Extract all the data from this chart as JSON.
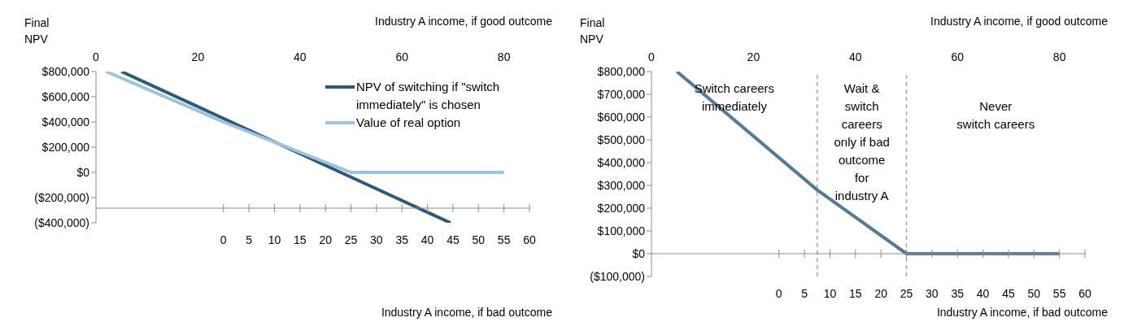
{
  "chart_data": [
    {
      "type": "line",
      "ylabel": "Final\nNPV",
      "xlabel": "Industry A income, if bad outcome",
      "x2label": "Industry A income, if good outcome",
      "xlim": [
        -25,
        60
      ],
      "xticks": [
        0,
        5,
        10,
        15,
        20,
        25,
        30,
        35,
        40,
        45,
        50,
        55,
        60
      ],
      "x2lim": [
        0,
        85
      ],
      "x2ticks": [
        0,
        20,
        40,
        60,
        80
      ],
      "ylim": [
        -400000,
        800000
      ],
      "yticks": [
        {
          "value": -400000,
          "label": "($400,000)"
        },
        {
          "value": -200000,
          "label": "($200,000)"
        },
        {
          "value": 0,
          "label": "$0"
        },
        {
          "value": 200000,
          "label": "$200,000"
        },
        {
          "value": 400000,
          "label": "$400,000"
        },
        {
          "value": 600000,
          "label": "$600,000"
        },
        {
          "value": 800000,
          "label": "$800,000"
        }
      ],
      "grid": false,
      "legend": "top right",
      "marker": "none",
      "series": [
        {
          "name": "NPV of switching if \"switch immediately\" is chosen",
          "color": "#2e5a7a",
          "x": [
            -20,
            44.5
          ],
          "values": [
            800000,
            -400000
          ]
        },
        {
          "name": "Value of real option",
          "color": "#9ec4dd",
          "x": [
            -23,
            0,
            25,
            55
          ],
          "values": [
            800000,
            400000,
            0,
            0
          ]
        }
      ]
    },
    {
      "type": "line",
      "ylabel": "Final\nNPV",
      "xlabel": "Industry A income, if bad outcome",
      "x2label": "Industry A income, if good outcome",
      "xlim": [
        -25,
        60
      ],
      "xticks": [
        0,
        5,
        10,
        15,
        20,
        25,
        30,
        35,
        40,
        45,
        50,
        55,
        60
      ],
      "x2lim": [
        0,
        85
      ],
      "x2ticks": [
        0,
        20,
        40,
        60,
        80
      ],
      "ylim": [
        -100000,
        800000
      ],
      "yticks": [
        {
          "value": -100000,
          "label": "($100,000)"
        },
        {
          "value": 0,
          "label": "$0"
        },
        {
          "value": 100000,
          "label": "$100,000"
        },
        {
          "value": 200000,
          "label": "$200,000"
        },
        {
          "value": 300000,
          "label": "$300,000"
        },
        {
          "value": 400000,
          "label": "$400,000"
        },
        {
          "value": 500000,
          "label": "$500,000"
        },
        {
          "value": 600000,
          "label": "$600,000"
        },
        {
          "value": 700000,
          "label": "$700,000"
        },
        {
          "value": 800000,
          "label": "$800,000"
        }
      ],
      "grid": false,
      "legend": false,
      "marker": "none",
      "ref_lines": [
        {
          "axis": "x",
          "value": 7.5,
          "color": "#a6a6a6",
          "line_style": "dashed"
        },
        {
          "axis": "x",
          "value": 25,
          "color": "#a6a6a6",
          "line_style": "dashed"
        }
      ],
      "annotations": [
        "Switch careers\nimmediately",
        "Wait &\nswitch\ncareers\nonly if bad\noutcome\nfor\nindustry A",
        "Never\nswitch careers"
      ],
      "series": [
        {
          "color": "#557a96",
          "x": [
            -20,
            7.5,
            25,
            55
          ],
          "values": [
            800000,
            280000,
            0,
            0
          ]
        }
      ]
    }
  ]
}
